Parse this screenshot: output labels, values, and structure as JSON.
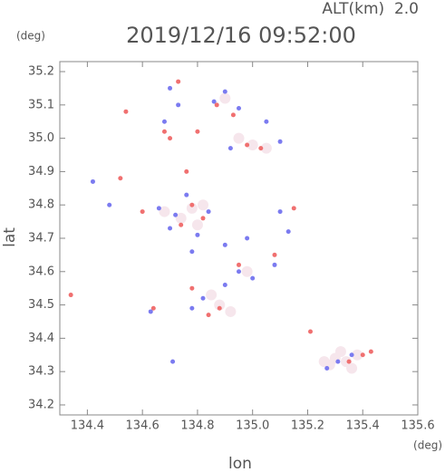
{
  "chart_data": {
    "type": "scatter",
    "title": "2019/12/16 09:52:00",
    "annotation": "ALT(km)  2.0",
    "y_unit": "(deg)",
    "x_unit": "(deg)",
    "xlabel": "lon",
    "ylabel": "lat",
    "xlim": [
      134.3,
      135.6
    ],
    "ylim": [
      34.17,
      35.23
    ],
    "xticks": [
      134.4,
      134.6,
      134.8,
      {
        "value": 135,
        "label": "135.0"
      },
      135.2,
      135.4,
      135.6
    ],
    "yticks": [
      34.2,
      34.3,
      34.4,
      34.5,
      34.6,
      34.7,
      34.8,
      34.9,
      {
        "value": 35,
        "label": "35.0"
      },
      35.1,
      35.2
    ],
    "series": [
      {
        "color": "#f6e6ec",
        "marker_size": 6,
        "x": [
          134.78,
          134.74,
          134.82,
          134.8,
          134.88,
          134.92,
          134.85,
          135.3,
          135.34,
          135.28,
          135.38,
          135.32,
          135.0,
          134.95,
          135.05,
          134.9,
          134.68,
          134.98,
          135.26,
          135.36
        ],
        "y": [
          34.79,
          34.76,
          34.8,
          34.74,
          34.5,
          34.48,
          34.53,
          34.34,
          34.33,
          34.32,
          34.35,
          34.36,
          34.98,
          35.0,
          34.97,
          35.12,
          34.78,
          34.6,
          34.33,
          34.31
        ]
      },
      {
        "color": "#7b7bf0",
        "marker_size": 2.5,
        "x": [
          134.76,
          134.72,
          134.8,
          134.84,
          134.66,
          134.7,
          134.9,
          134.86,
          134.95,
          135.05,
          135.1,
          134.92,
          134.7,
          134.68,
          134.73,
          134.48,
          134.42,
          134.9,
          134.82,
          134.78,
          134.95,
          135.0,
          135.08,
          135.1,
          135.13,
          134.78,
          135.31,
          135.36,
          135.27,
          134.63,
          134.71,
          134.9,
          134.98
        ],
        "y": [
          34.83,
          34.77,
          34.71,
          34.78,
          34.79,
          34.73,
          35.14,
          35.11,
          35.09,
          35.05,
          34.99,
          34.97,
          35.15,
          35.05,
          35.1,
          34.8,
          34.87,
          34.56,
          34.52,
          34.49,
          34.6,
          34.58,
          34.62,
          34.78,
          34.72,
          34.66,
          34.33,
          34.35,
          34.31,
          34.48,
          34.33,
          34.68,
          34.7
        ]
      },
      {
        "color": "#f07070",
        "marker_size": 2.5,
        "x": [
          134.78,
          134.74,
          134.82,
          134.6,
          134.52,
          134.54,
          134.73,
          134.8,
          134.87,
          134.93,
          134.98,
          135.03,
          134.68,
          134.88,
          134.84,
          134.78,
          134.64,
          134.34,
          135.4,
          135.43,
          135.35,
          135.21,
          135.08,
          135.15,
          134.95,
          134.76,
          134.7
        ],
        "y": [
          34.8,
          34.74,
          34.76,
          34.78,
          34.88,
          35.08,
          35.17,
          35.02,
          35.1,
          35.07,
          34.98,
          34.97,
          35.02,
          34.49,
          34.47,
          34.55,
          34.49,
          34.53,
          34.35,
          34.36,
          34.33,
          34.42,
          34.65,
          34.79,
          34.62,
          34.9,
          35.0
        ]
      }
    ]
  }
}
